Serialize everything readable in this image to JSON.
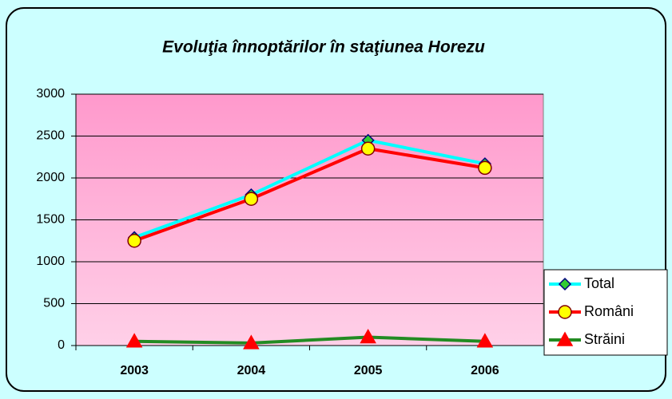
{
  "chart_data": {
    "type": "line",
    "title": "Evoluţia înnoptărilor în staţiunea Horezu",
    "categories": [
      "2003",
      "2004",
      "2005",
      "2006"
    ],
    "series": [
      {
        "name": "Total",
        "color": "#00ffff",
        "marker": "diamond",
        "marker_color": "#33cc33",
        "values": [
          1290,
          1800,
          2450,
          2170
        ]
      },
      {
        "name": "Români",
        "color": "#ff0000",
        "marker": "circle",
        "marker_color": "#ffff00",
        "values": [
          1250,
          1750,
          2350,
          2120
        ]
      },
      {
        "name": "Străini",
        "color": "#228b22",
        "marker": "triangle",
        "marker_color": "#ff0000",
        "values": [
          50,
          30,
          100,
          50
        ]
      }
    ],
    "ylim": [
      0,
      3000
    ],
    "yticks": [
      0,
      500,
      1000,
      1500,
      2000,
      2500,
      3000
    ],
    "grid": true,
    "legend": "right"
  }
}
